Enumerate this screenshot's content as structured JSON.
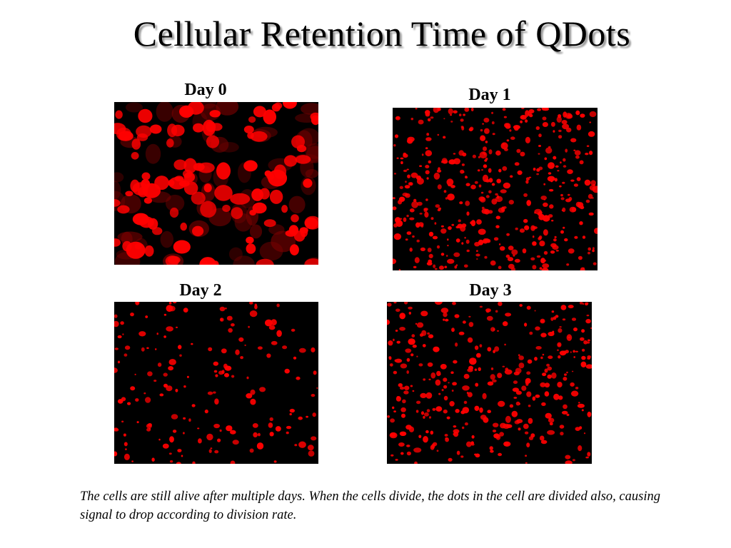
{
  "title": "Cellular Retention Time of QDots",
  "panels": [
    {
      "label": "Day 0",
      "density": 110,
      "size_scale": 1.0
    },
    {
      "label": "Day 1",
      "density": 420,
      "size_scale": 0.5
    },
    {
      "label": "Day 2",
      "density": 170,
      "size_scale": 0.55
    },
    {
      "label": "Day 3",
      "density": 340,
      "size_scale": 0.45
    }
  ],
  "caption": "The cells are still alive after multiple days. When the cells divide, the dots in the cell are divided also, causing signal to drop according to division rate.",
  "colors": {
    "signal": "#ff0000",
    "background": "#000000"
  }
}
